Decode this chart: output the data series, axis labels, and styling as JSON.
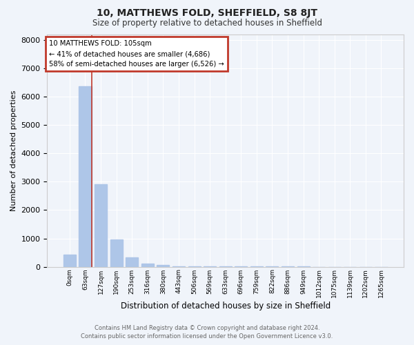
{
  "title": "10, MATTHEWS FOLD, SHEFFIELD, S8 8JT",
  "subtitle": "Size of property relative to detached houses in Sheffield",
  "xlabel": "Distribution of detached houses by size in Sheffield",
  "ylabel": "Number of detached properties",
  "bar_color": "#aec6e8",
  "marker_color": "#c0392b",
  "annotation_box_color": "#c0392b",
  "background_color": "#f0f4fa",
  "grid_color": "#ffffff",
  "categories": [
    "0sqm",
    "63sqm",
    "127sqm",
    "190sqm",
    "253sqm",
    "316sqm",
    "380sqm",
    "443sqm",
    "506sqm",
    "569sqm",
    "633sqm",
    "696sqm",
    "759sqm",
    "822sqm",
    "886sqm",
    "949sqm",
    "1012sqm",
    "1075sqm",
    "1139sqm",
    "1202sqm",
    "1265sqm"
  ],
  "values": [
    430,
    6380,
    2920,
    960,
    330,
    120,
    60,
    25,
    15,
    10,
    8,
    5,
    4,
    3,
    2,
    2,
    1,
    1,
    1,
    0,
    0
  ],
  "marker_bin_index": 1,
  "annotation_title": "10 MATTHEWS FOLD: 105sqm",
  "annotation_line1": "← 41% of detached houses are smaller (4,686)",
  "annotation_line2": "58% of semi-detached houses are larger (6,526) →",
  "footer_line1": "Contains HM Land Registry data © Crown copyright and database right 2024.",
  "footer_line2": "Contains public sector information licensed under the Open Government Licence v3.0.",
  "ylim": [
    0,
    8200
  ],
  "yticks": [
    0,
    1000,
    2000,
    3000,
    4000,
    5000,
    6000,
    7000,
    8000
  ]
}
